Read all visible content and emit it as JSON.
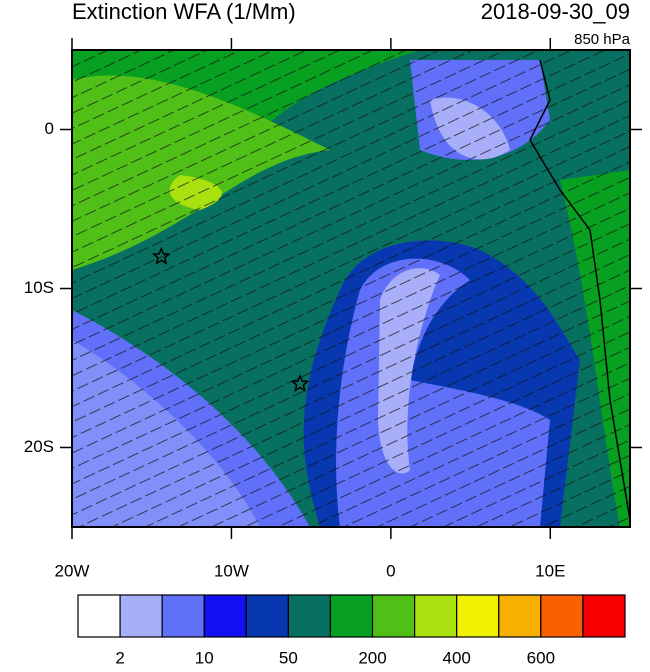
{
  "header": {
    "title": "Extinction WFA (1/Mm)",
    "time": "2018-09-30_09",
    "level": "850 hPa"
  },
  "map": {
    "xlim": [
      -20,
      15
    ],
    "ylim": [
      -25,
      5
    ],
    "xticks": [
      {
        "value": -20,
        "label": "20W"
      },
      {
        "value": -10,
        "label": "10W"
      },
      0,
      {
        "value": 10,
        "label": "10E"
      }
    ],
    "yticks": [
      0,
      {
        "value": -10,
        "label": "10S"
      },
      {
        "value": -20,
        "label": "20S"
      }
    ],
    "markers": [
      {
        "lon": -14.4,
        "lat": -8
      },
      {
        "lon": -5.7,
        "lat": -16
      }
    ]
  },
  "colorbar": {
    "colors": [
      "#ffffff",
      "#a8aef8",
      "#6070f8",
      "#1010f0",
      "#0838b0",
      "#087060",
      "#08a020",
      "#50c018",
      "#a8e010",
      "#f0f000",
      "#f8b000",
      "#f86000",
      "#f80000"
    ],
    "levels": [
      2,
      null,
      10,
      null,
      50,
      null,
      200,
      null,
      400,
      null,
      600,
      null
    ]
  }
}
